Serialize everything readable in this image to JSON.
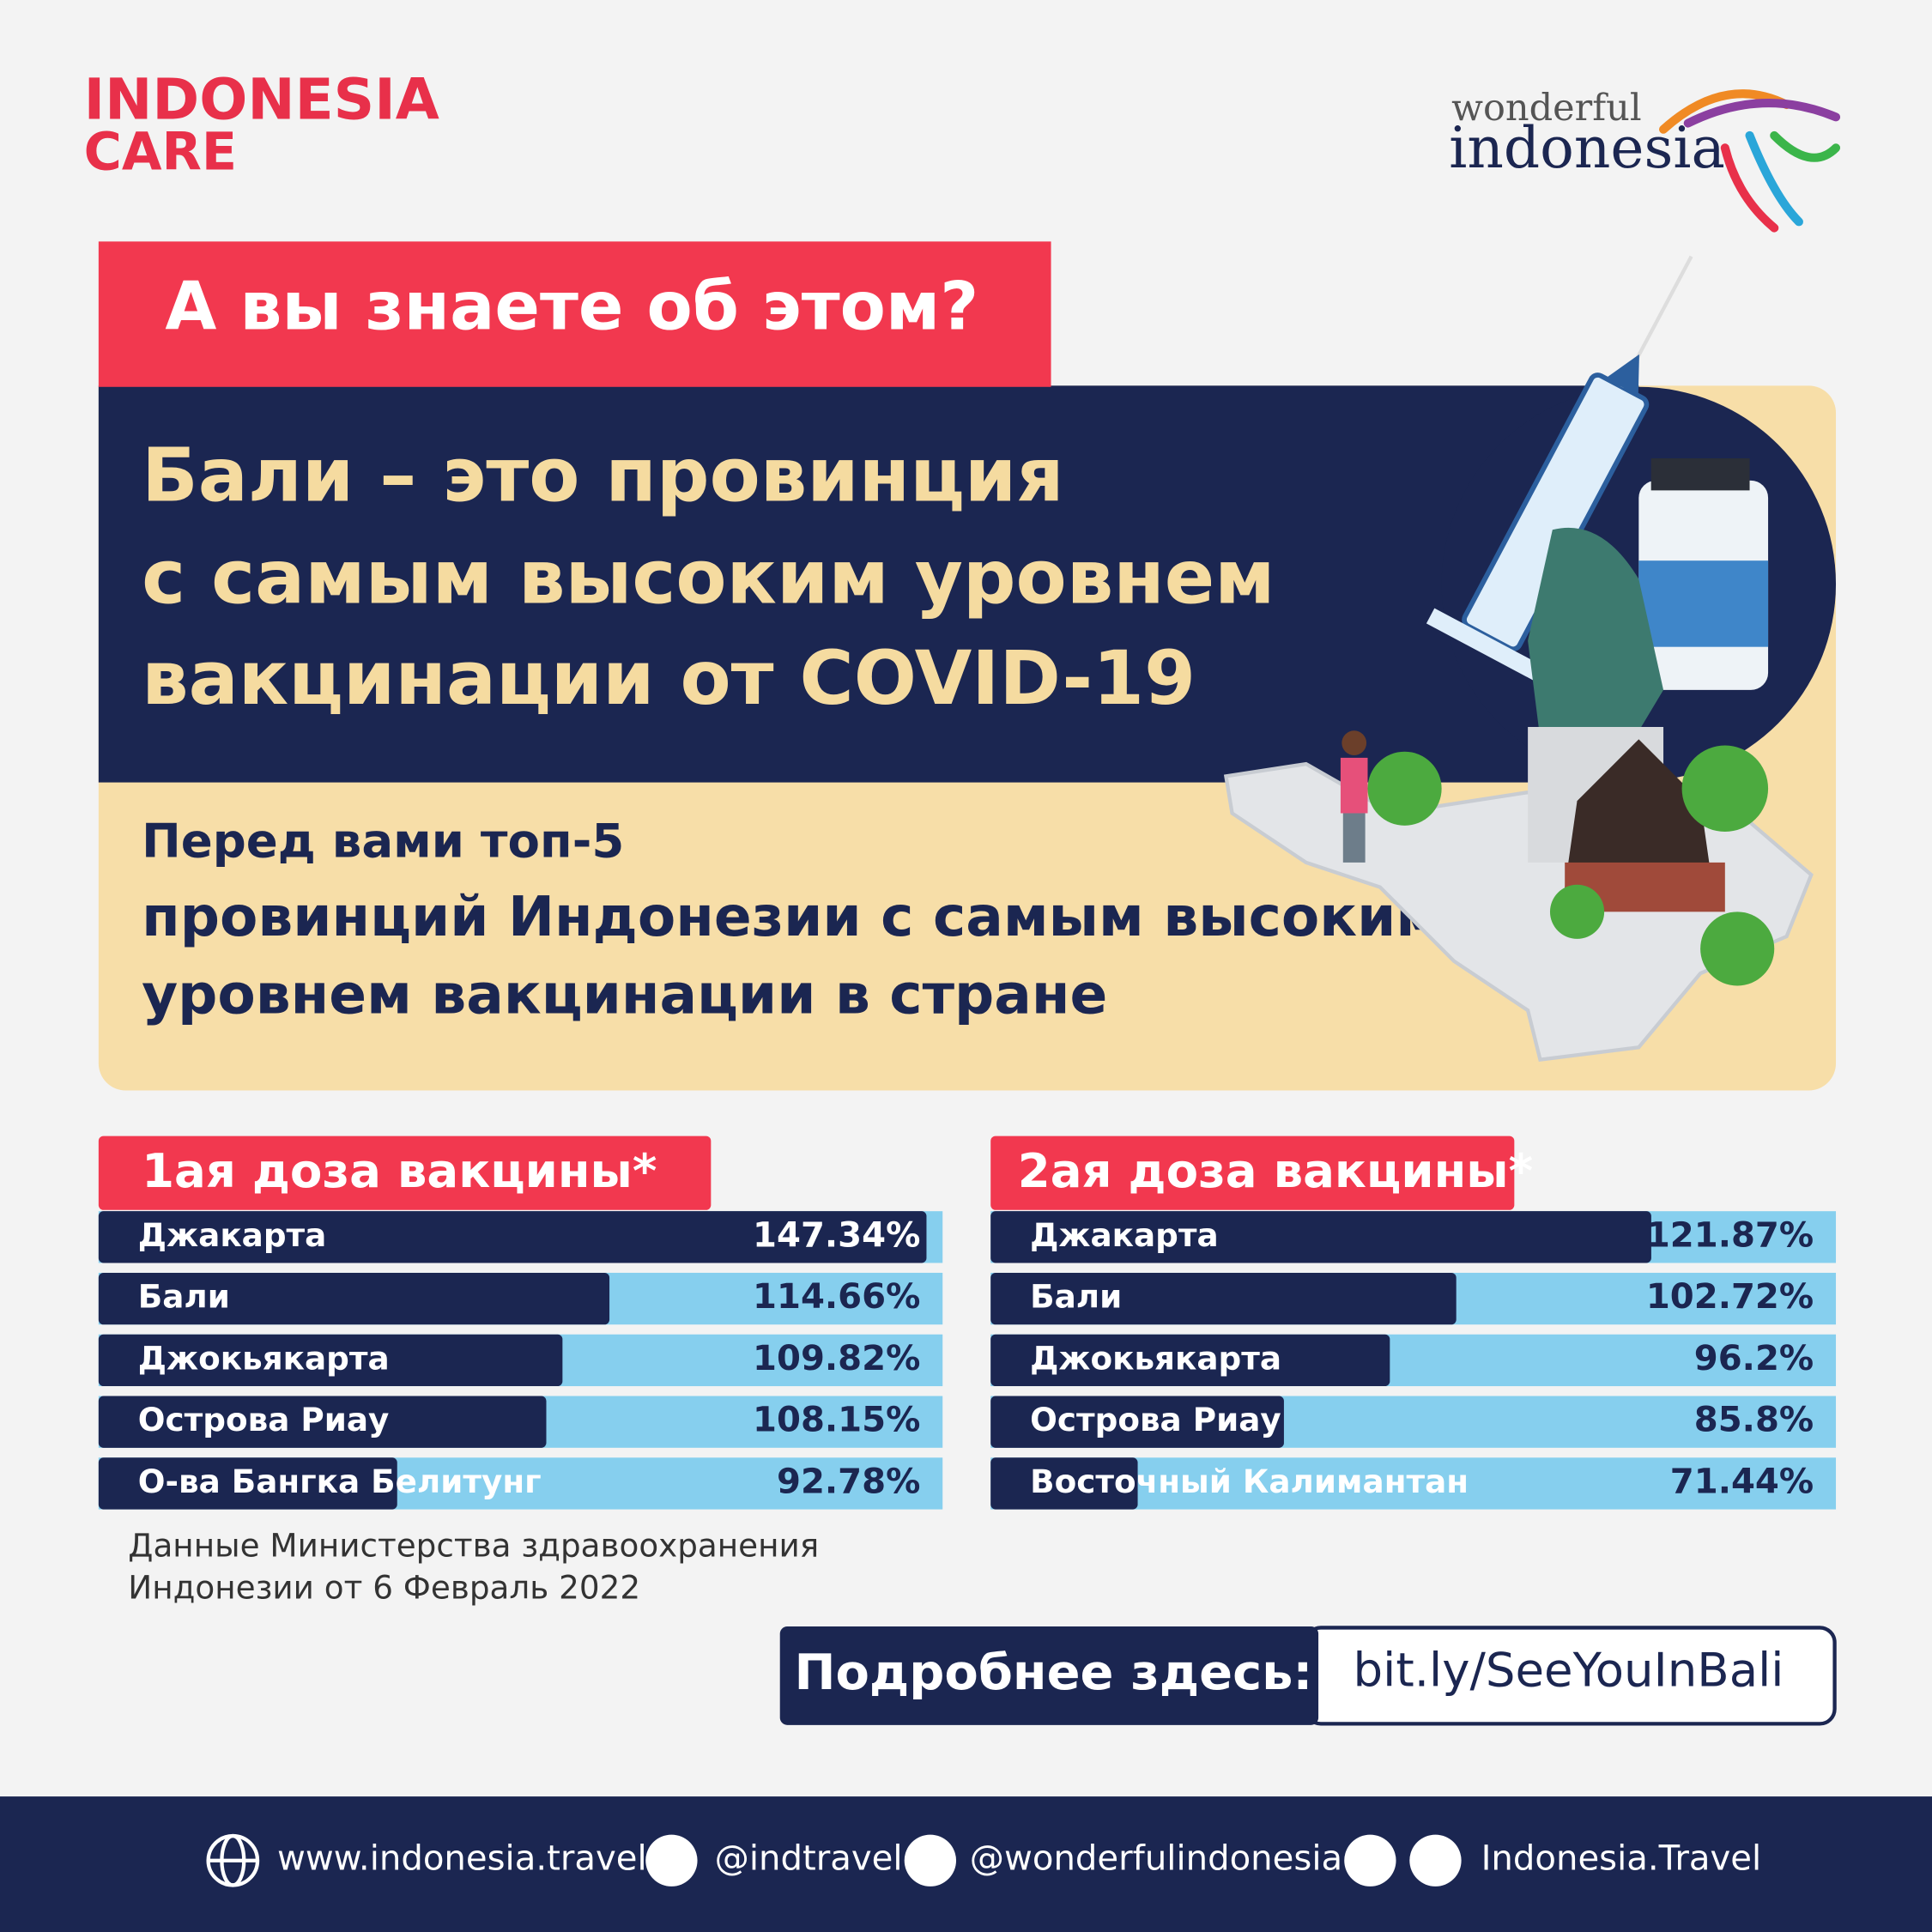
{
  "logo_left": {
    "line1": "INDONESIA",
    "line2": "CARE"
  },
  "logo_right": {
    "line1": "wonderful",
    "line2": "indonesia"
  },
  "badge": "А вы знаете об этом?",
  "headline": [
    "Бали – это провинция",
    "с самым высоким уровнем",
    "вакцинации от COVID-19"
  ],
  "subheadline": [
    "Перед вами топ-5",
    "провинций Индонезии с самым высоким",
    "уровнем вакцинации в стране"
  ],
  "chart_data": [
    {
      "type": "bar",
      "title": "1ая доза вакцины*",
      "categories": [
        "Джакарта",
        "Бали",
        "Джокьякарта",
        "Острова Риау",
        "О-ва Бангка Белитунг"
      ],
      "values": [
        147.34,
        114.66,
        109.82,
        108.15,
        92.78
      ],
      "value_labels": [
        "147.34%",
        "114.66%",
        "109.82%",
        "108.15%",
        "92.78%"
      ],
      "xlim": [
        62,
        149
      ],
      "color": "#1b2651",
      "track_color": "#86cfee"
    },
    {
      "type": "bar",
      "title": "2ая доза вакцины*",
      "categories": [
        "Джакарта",
        "Бали",
        "Джокьякарта",
        "Острова Риау",
        "Восточный Калимантан"
      ],
      "values": [
        121.87,
        102.72,
        96.2,
        85.8,
        71.44
      ],
      "value_labels": [
        "121.87%",
        "102.72%",
        "96.2%",
        "85.8%",
        "71.44%"
      ],
      "xlim": [
        57,
        140
      ],
      "color": "#1b2651",
      "track_color": "#86cfee"
    }
  ],
  "source": [
    "Данные Министерства здравоохранения",
    "Индонезии от 6 Февраль 2022"
  ],
  "cta": {
    "label": "Подробнее здесь:",
    "link": "bit.ly/SeeYouInBali"
  },
  "footer": {
    "website": "www.indonesia.travel",
    "twitter": "@indtravel",
    "instagram": "@wonderfulindonesia",
    "facebook_youtube": "Indonesia.Travel"
  }
}
